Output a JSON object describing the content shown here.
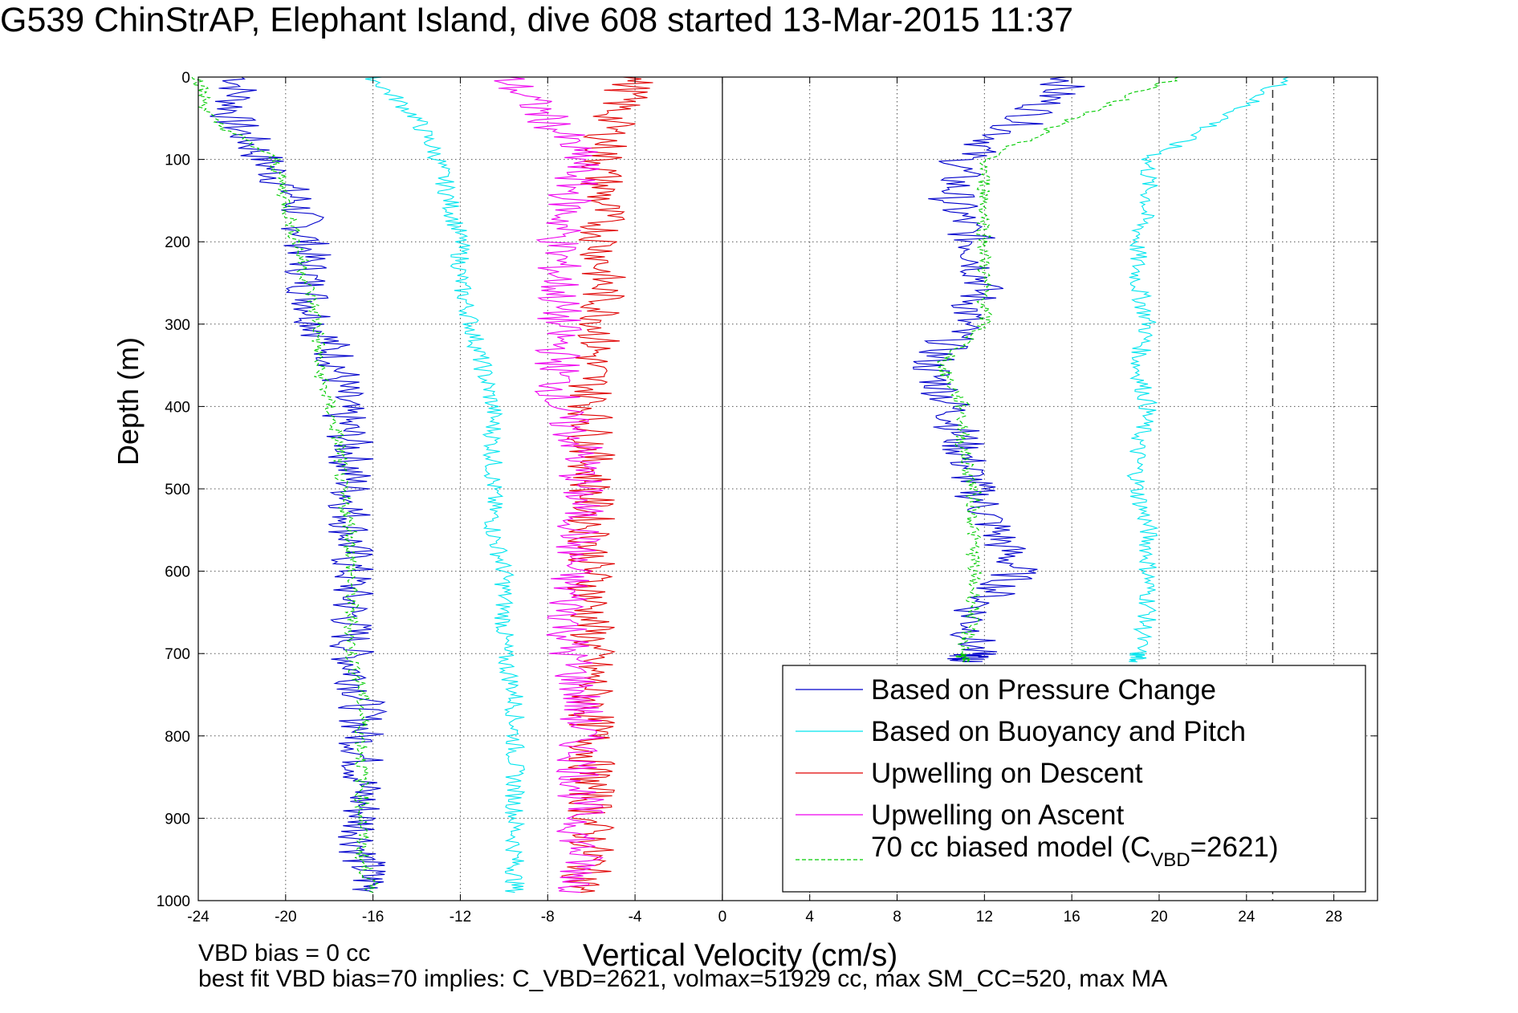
{
  "colors": {
    "pressure": "#0000cc",
    "buoyancy": "#00e5ee",
    "descent": "#e00000",
    "ascent": "#ee00ee",
    "model": "#00cc00"
  },
  "chart_data": {
    "type": "line",
    "title": "G539 ChinStrAP, Elephant Island, dive 608 started 13-Mar-2015 11:37",
    "xlabel": "Vertical Velocity (cm/s)",
    "ylabel": "Depth (m)",
    "xlim": [
      -24,
      30
    ],
    "ylim": [
      1000,
      0
    ],
    "y_reversed": true,
    "x_ticks": [
      -24,
      -20,
      -16,
      -12,
      -8,
      -4,
      0,
      4,
      8,
      12,
      16,
      20,
      24,
      28
    ],
    "y_ticks": [
      0,
      100,
      200,
      300,
      400,
      500,
      600,
      700,
      800,
      900,
      1000
    ],
    "grid": true,
    "reference_lines": {
      "vertical_solid_at": 0,
      "vertical_dashed_at": 25.2
    },
    "legend_position": "lower-right",
    "legend": {
      "entries": [
        {
          "label": "Based on Pressure Change"
        },
        {
          "label": "Based on Buoyancy and Pitch"
        },
        {
          "label": "Upwelling on Descent"
        },
        {
          "label": "Upwelling on Ascent"
        }
      ],
      "model_entry": {
        "prefix": "70 cc biased model (C",
        "subscript": "VBD",
        "suffix": "=2621)"
      }
    },
    "series": [
      {
        "name": "Based on Pressure Change",
        "style": "solid",
        "color_key": "pressure",
        "branches": [
          {
            "x": [
              -22,
              -22.5,
              -21,
              -19.5,
              -19,
              -19,
              -18.5,
              -17.5,
              -17.5,
              -17,
              -17,
              -17,
              -17,
              -17,
              -17,
              -16.5,
              -16.5,
              -16.5,
              -16.5,
              -16.5,
              -16
            ],
            "y": [
              0,
              50,
              100,
              150,
              200,
              250,
              300,
              350,
              400,
              450,
              500,
              550,
              600,
              650,
              700,
              750,
              800,
              850,
              900,
              950,
              990
            ]
          },
          {
            "x": [
              16,
              14,
              11,
              10.5,
              11.5,
              12,
              11,
              9.5,
              10.5,
              11,
              11.5,
              12.5,
              13.5,
              11.5,
              11.5,
              11
            ],
            "y": [
              0,
              50,
              100,
              150,
              200,
              250,
              300,
              350,
              400,
              450,
              500,
              550,
              600,
              650,
              700,
              710
            ]
          }
        ]
      },
      {
        "name": "Based on Buoyancy and Pitch",
        "style": "solid",
        "color_key": "buoyancy",
        "branches": [
          {
            "x": [
              -16,
              -14,
              -13,
              -12.5,
              -12,
              -12,
              -11.5,
              -11,
              -10.5,
              -10.5,
              -10.5,
              -10.5,
              -10,
              -10,
              -10,
              -9.5,
              -9.5,
              -9.5,
              -9.5,
              -9.5,
              -9.5
            ],
            "y": [
              0,
              50,
              100,
              150,
              200,
              250,
              300,
              350,
              400,
              450,
              500,
              550,
              600,
              650,
              700,
              750,
              800,
              850,
              900,
              950,
              990
            ]
          },
          {
            "x": [
              26,
              23,
              19.5,
              19.5,
              19,
              19,
              19.5,
              19,
              19.5,
              19,
              19,
              19.5,
              19.5,
              19.5,
              19,
              19
            ],
            "y": [
              0,
              50,
              100,
              150,
              200,
              250,
              300,
              350,
              400,
              450,
              500,
              550,
              600,
              650,
              700,
              710
            ]
          }
        ]
      },
      {
        "name": "Upwelling on Descent",
        "style": "solid",
        "color_key": "descent",
        "branches": [
          {
            "x": [
              -4,
              -5,
              -5.5,
              -5.5,
              -5.5,
              -5.5,
              -5.5,
              -6,
              -6,
              -6,
              -6,
              -6,
              -6,
              -6,
              -6,
              -6,
              -6,
              -6,
              -6,
              -6,
              -6.5
            ],
            "y": [
              0,
              50,
              100,
              150,
              200,
              250,
              300,
              350,
              400,
              450,
              500,
              550,
              600,
              650,
              700,
              750,
              800,
              850,
              900,
              950,
              990
            ]
          }
        ]
      },
      {
        "name": "Upwelling on Ascent",
        "style": "solid",
        "color_key": "ascent",
        "branches": [
          {
            "x": [
              -10,
              -8,
              -6.5,
              -7,
              -7.5,
              -7.5,
              -7.5,
              -7.5,
              -7.5,
              -6.5,
              -6.5,
              -6.5,
              -7,
              -7,
              -7,
              -6.5,
              -6.5,
              -6.5,
              -6.5,
              -6.5,
              -6.5
            ],
            "y": [
              0,
              50,
              100,
              150,
              200,
              250,
              300,
              350,
              400,
              450,
              500,
              550,
              600,
              650,
              700,
              750,
              800,
              850,
              900,
              950,
              990
            ]
          }
        ]
      },
      {
        "name": "70 cc biased model (CVBD=2621)",
        "style": "dashed",
        "color_key": "model",
        "branches": [
          {
            "x": [
              -24,
              -23.5,
              -20.5,
              -20,
              -19.5,
              -19,
              -18.5,
              -18.5,
              -18,
              -17.5,
              -17.5,
              -17,
              -17,
              -17,
              -17,
              -16.5,
              -16.5,
              -16.5,
              -16.5,
              -16.5,
              -16
            ],
            "y": [
              0,
              50,
              100,
              150,
              200,
              250,
              300,
              350,
              400,
              450,
              500,
              550,
              600,
              650,
              700,
              750,
              800,
              850,
              900,
              950,
              990
            ]
          },
          {
            "x": [
              21,
              16,
              12,
              12,
              12,
              12,
              12,
              10,
              11,
              11,
              11.5,
              11.5,
              11.5,
              11.5,
              11,
              11
            ],
            "y": [
              0,
              50,
              100,
              150,
              200,
              250,
              300,
              350,
              400,
              450,
              500,
              550,
              600,
              650,
              700,
              710
            ]
          }
        ]
      }
    ]
  },
  "footnotes": {
    "line1": "VBD bias = 0 cc",
    "line2": "best fit VBD bias=70 implies: C_VBD=2621, volmax=51929 cc, max SM_CC=520, max MA"
  }
}
